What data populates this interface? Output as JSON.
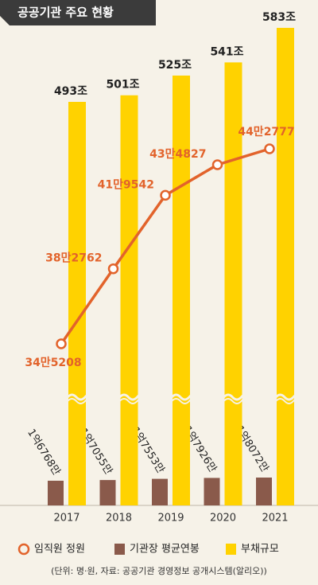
{
  "chart_data": {
    "type": "bar",
    "title": "공공기관 주요 현황",
    "categories": [
      "2017",
      "2018",
      "2019",
      "2020",
      "2021"
    ],
    "series": [
      {
        "name": "임직원 정원",
        "type": "line",
        "color": "#e2632b",
        "values": [
          345208,
          382762,
          419542,
          434827,
          442777
        ],
        "value_labels": [
          "34만5208",
          "38만2762",
          "41만9542",
          "43만4827",
          "44만2777"
        ]
      },
      {
        "name": "기관장 평균연봉",
        "type": "bar",
        "color": "#8a5a4b",
        "values": [
          167680000,
          170550000,
          175530000,
          179260000,
          180720000
        ],
        "value_labels": [
          "1억6768만",
          "1억7055만",
          "1억7553만",
          "1억7926만",
          "1억8072만"
        ]
      },
      {
        "name": "부채규모",
        "type": "bar",
        "color": "#ffd200",
        "values": [
          493,
          501,
          525,
          541,
          583
        ],
        "value_labels": [
          "493조",
          "501조",
          "525조",
          "541조",
          "583조"
        ]
      }
    ],
    "note": "(단위: 명·원, 자료: 공공기관 경영정보 공개시스템(알리오))"
  }
}
